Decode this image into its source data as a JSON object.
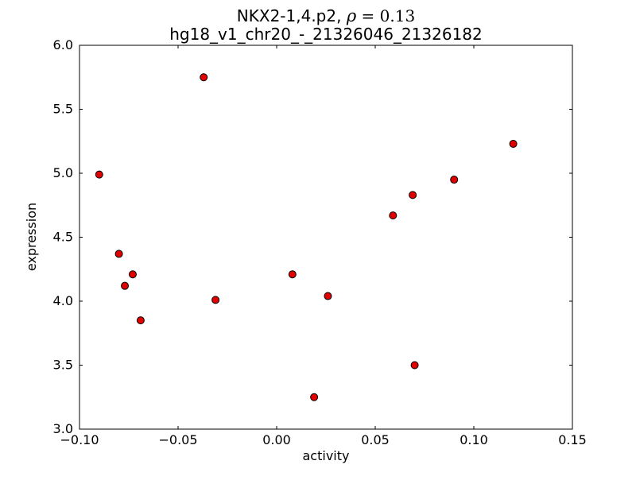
{
  "chart_data": {
    "type": "scatter",
    "title": "NKX2-1,4.p2, ρ = 0.13",
    "title_prefix": "NKX2-1,4.p2, ",
    "title_math_symbol": "ρ",
    "title_math_rest": " = 0.13",
    "subtitle": "hg18_v1_chr20_-_21326046_21326182",
    "xlabel": "activity",
    "ylabel": "expression",
    "xlim": [
      -0.1,
      0.15
    ],
    "ylim": [
      3.0,
      6.0
    ],
    "grid": false,
    "legend": "none",
    "marker": {
      "shape": "circle",
      "fill_color": "#e00000",
      "edge_color": "#000000",
      "radius_px": 4.5
    },
    "frame_color": "#000000",
    "background_color": "#ffffff",
    "xticks": [
      {
        "value": -0.1,
        "label": "−0.10"
      },
      {
        "value": -0.05,
        "label": "−0.05"
      },
      {
        "value": 0.0,
        "label": "0.00"
      },
      {
        "value": 0.05,
        "label": "0.05"
      },
      {
        "value": 0.1,
        "label": "0.10"
      },
      {
        "value": 0.15,
        "label": "0.15"
      }
    ],
    "yticks": [
      {
        "value": 3.0,
        "label": "3.0"
      },
      {
        "value": 3.5,
        "label": "3.5"
      },
      {
        "value": 4.0,
        "label": "4.0"
      },
      {
        "value": 4.5,
        "label": "4.5"
      },
      {
        "value": 5.0,
        "label": "5.0"
      },
      {
        "value": 5.5,
        "label": "5.5"
      },
      {
        "value": 6.0,
        "label": "6.0"
      }
    ],
    "points": [
      [
        -0.09,
        4.99
      ],
      [
        -0.08,
        4.37
      ],
      [
        -0.077,
        4.12
      ],
      [
        -0.073,
        4.21
      ],
      [
        -0.069,
        3.85
      ],
      [
        -0.037,
        5.75
      ],
      [
        -0.031,
        4.01
      ],
      [
        0.008,
        4.21
      ],
      [
        0.019,
        3.25
      ],
      [
        0.026,
        4.04
      ],
      [
        0.059,
        4.67
      ],
      [
        0.069,
        4.83
      ],
      [
        0.07,
        3.5
      ],
      [
        0.09,
        4.95
      ],
      [
        0.12,
        5.23
      ]
    ]
  }
}
